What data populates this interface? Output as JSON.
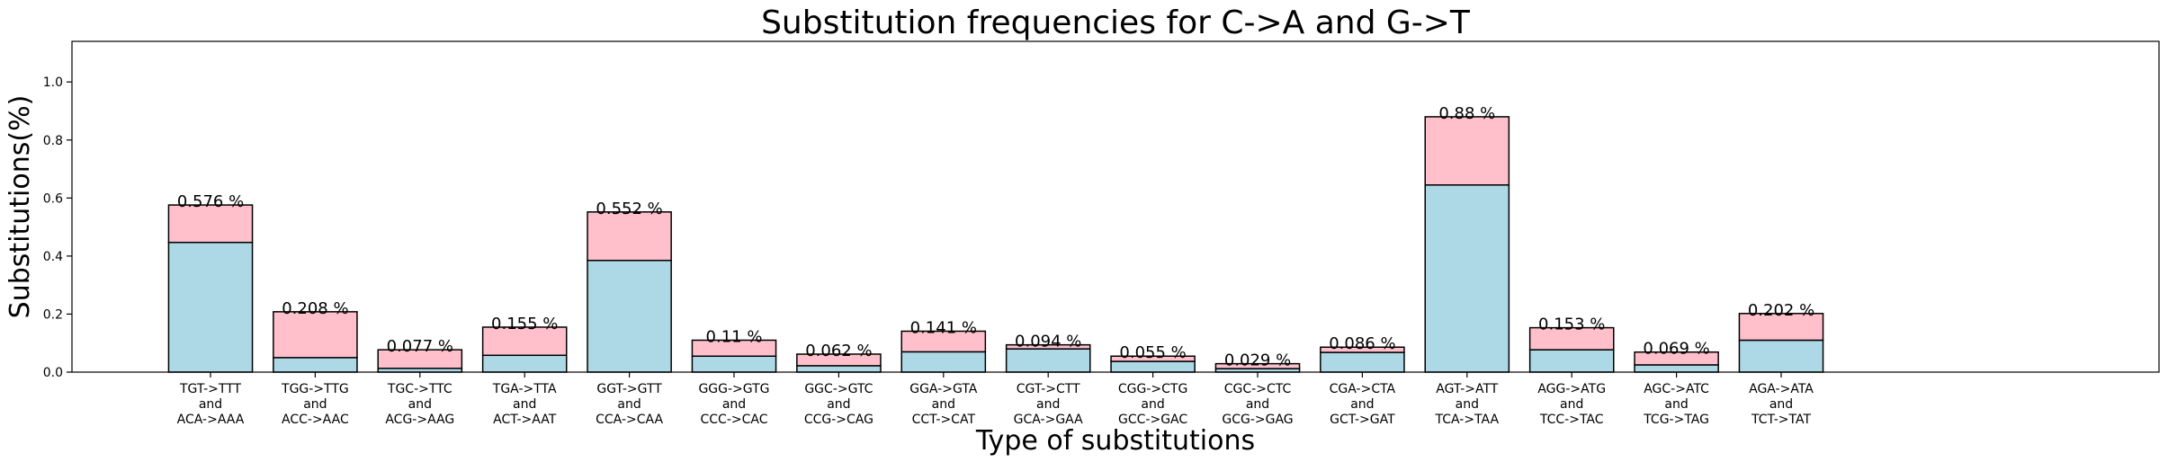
{
  "chart_data": {
    "type": "bar",
    "stacked": true,
    "title": "Substitution frequencies for C->A and G->T",
    "xlabel": "Type of substitutions",
    "ylabel": "Substitutions(%)",
    "ylim": [
      0,
      1.14
    ],
    "yticks": [
      "0.0",
      "0.2",
      "0.4",
      "0.6",
      "0.8",
      "1.0"
    ],
    "grid": false,
    "colors": {
      "lower": "#add8e6",
      "upper": "#ffc0cb",
      "edge": "#000000"
    },
    "categories": [
      [
        "TGT->TTT",
        "and",
        "ACA->AAA"
      ],
      [
        "TGG->TTG",
        "and",
        "ACC->AAC"
      ],
      [
        "TGC->TTC",
        "and",
        "ACG->AAG"
      ],
      [
        "TGA->TTA",
        "and",
        "ACT->AAT"
      ],
      [
        "GGT->GTT",
        "and",
        "CCA->CAA"
      ],
      [
        "GGG->GTG",
        "and",
        "CCC->CAC"
      ],
      [
        "GGC->GTC",
        "and",
        "CCG->CAG"
      ],
      [
        "GGA->GTA",
        "and",
        "CCT->CAT"
      ],
      [
        "CGT->CTT",
        "and",
        "GCA->GAA"
      ],
      [
        "CGG->CTG",
        "and",
        "GCC->GAC"
      ],
      [
        "CGC->CTC",
        "and",
        "GCG->GAG"
      ],
      [
        "CGA->CTA",
        "and",
        "GCT->GAT"
      ],
      [
        "AGT->ATT",
        "and",
        "TCA->TAA"
      ],
      [
        "AGG->ATG",
        "and",
        "TCC->TAC"
      ],
      [
        "AGC->ATC",
        "and",
        "TCG->TAG"
      ],
      [
        "AGA->ATA",
        "and",
        "TCT->TAT"
      ]
    ],
    "series": [
      {
        "values": [
          0.447,
          0.05,
          0.013,
          0.058,
          0.385,
          0.055,
          0.022,
          0.07,
          0.08,
          0.037,
          0.012,
          0.068,
          0.645,
          0.077,
          0.025,
          0.11
        ]
      },
      {
        "values": [
          0.129,
          0.158,
          0.064,
          0.097,
          0.167,
          0.055,
          0.04,
          0.071,
          0.014,
          0.018,
          0.017,
          0.018,
          0.235,
          0.076,
          0.044,
          0.092
        ]
      }
    ],
    "totals": [
      0.576,
      0.208,
      0.077,
      0.155,
      0.552,
      0.11,
      0.062,
      0.141,
      0.094,
      0.055,
      0.029,
      0.086,
      0.88,
      0.153,
      0.069,
      0.202
    ],
    "data_labels": [
      "0.576 %",
      "0.208 %",
      "0.077 %",
      "0.155 %",
      "0.552 %",
      "0.11 %",
      "0.062 %",
      "0.141 %",
      "0.094 %",
      "0.055 %",
      "0.029 %",
      "0.086 %",
      "0.88 %",
      "0.153 %",
      "0.069 %",
      "0.202 %"
    ]
  }
}
